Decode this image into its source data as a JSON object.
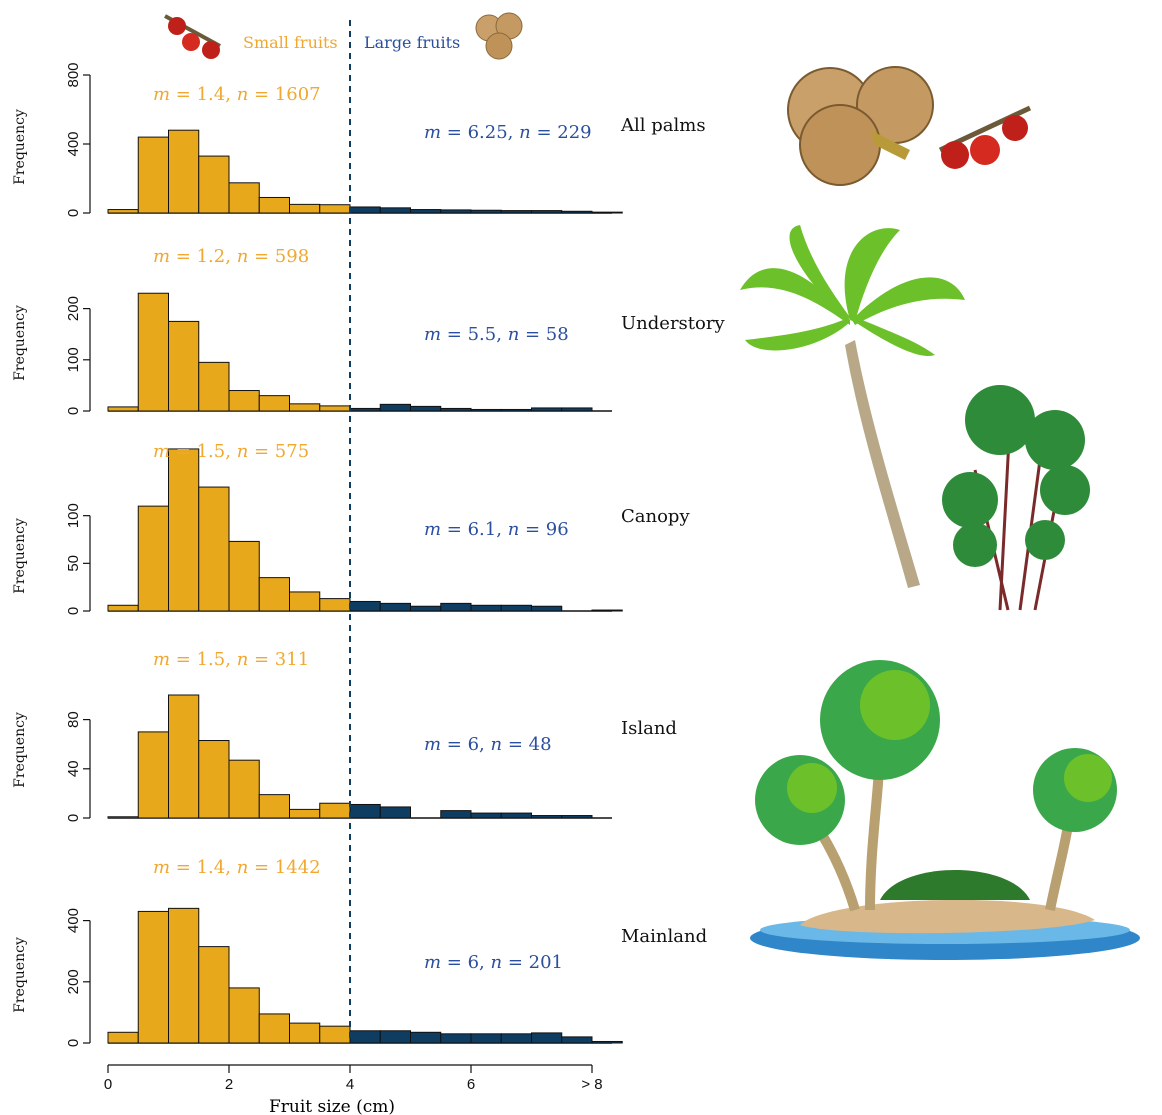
{
  "header": {
    "small_label": "Small fruits",
    "large_label": "Large fruits"
  },
  "colors": {
    "small": "#E8A81C",
    "large": "#0F3D62",
    "small_text": "#F0A830",
    "large_text": "#2B4F9E"
  },
  "chart_data": {
    "type": "bar",
    "xlabel": "Fruit size (cm)",
    "ylabel": "Frequency",
    "x_ticks": [
      "0",
      "2",
      "4",
      "6",
      "> 8"
    ],
    "threshold_cm": 4,
    "bin_width_cm": 0.5,
    "bin_starts_cm": [
      0,
      0.5,
      1,
      1.5,
      2,
      2.5,
      3,
      3.5,
      4,
      4.5,
      5,
      5.5,
      6,
      6.5,
      7,
      7.5,
      8
    ],
    "panels": [
      {
        "name": "All palms",
        "ylim": [
          0,
          800
        ],
        "yticks": [
          "0",
          "400",
          "800"
        ],
        "small_stats": {
          "m": "1.4",
          "n": "1607"
        },
        "large_stats": {
          "m": "6.25",
          "n": "229"
        },
        "values": [
          20,
          440,
          480,
          330,
          175,
          90,
          50,
          48,
          35,
          30,
          20,
          18,
          16,
          14,
          14,
          10,
          5
        ]
      },
      {
        "name": "Understory",
        "ylim": [
          0,
          250
        ],
        "yticks": [
          "0",
          "100",
          "200"
        ],
        "small_stats": {
          "m": "1.2",
          "n": "598"
        },
        "large_stats": {
          "m": "5.5",
          "n": "58"
        },
        "values": [
          8,
          230,
          175,
          95,
          40,
          30,
          14,
          10,
          5,
          13,
          9,
          5,
          3,
          3,
          6,
          6,
          0
        ]
      },
      {
        "name": "Canopy",
        "ylim": [
          0,
          150
        ],
        "yticks": [
          "0",
          "50",
          "100"
        ],
        "small_stats": {
          "m": "1.5",
          "n": "575"
        },
        "large_stats": {
          "m": "6.1",
          "n": "96"
        },
        "values": [
          6,
          110,
          170,
          130,
          73,
          35,
          20,
          13,
          10,
          8,
          5,
          8,
          6,
          6,
          5,
          0,
          1
        ]
      },
      {
        "name": "Island",
        "ylim": [
          0,
          100
        ],
        "yticks": [
          "0",
          "40",
          "80"
        ],
        "small_stats": {
          "m": "1.5",
          "n": "311"
        },
        "large_stats": {
          "m": "6",
          "n": "48"
        },
        "values": [
          1,
          70,
          100,
          63,
          47,
          19,
          7,
          12,
          11,
          9,
          0,
          6,
          4,
          4,
          2,
          2,
          0
        ]
      },
      {
        "name": "Mainland",
        "ylim": [
          0,
          500
        ],
        "yticks": [
          "0",
          "200",
          "400"
        ],
        "small_stats": {
          "m": "1.4",
          "n": "1442"
        },
        "large_stats": {
          "m": "6",
          "n": "201"
        },
        "values": [
          35,
          430,
          440,
          315,
          180,
          95,
          65,
          55,
          40,
          40,
          35,
          30,
          30,
          30,
          33,
          20,
          5
        ]
      }
    ]
  }
}
